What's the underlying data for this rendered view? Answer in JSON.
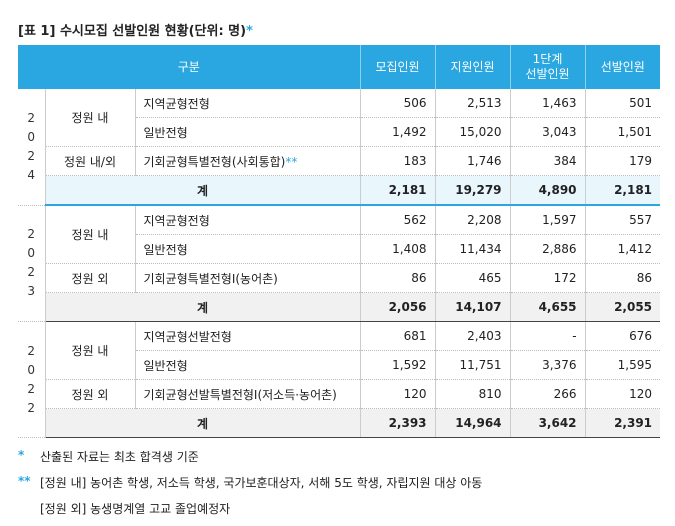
{
  "title": "[표 1] 수시모집 선발인원 현황(단위: 명)",
  "title_mark": "*",
  "header": {
    "category": "구분",
    "columns": [
      "모집인원",
      "지원인원",
      "1단계\n선발인원",
      "선발인원"
    ]
  },
  "blocks": [
    {
      "year": "2024",
      "groups": [
        {
          "label": "정원 내",
          "rows": [
            {
              "name": "지역균형전형",
              "values": [
                "506",
                "2,513",
                "1,463",
                "501"
              ]
            },
            {
              "name": "일반전형",
              "values": [
                "1,492",
                "15,020",
                "3,043",
                "1,501"
              ]
            }
          ]
        },
        {
          "label": "정원 내/외",
          "rows": [
            {
              "name": "기회균형특별전형(사회통합)",
              "mark": "**",
              "values": [
                "183",
                "1,746",
                "384",
                "179"
              ]
            }
          ]
        }
      ],
      "total": {
        "label": "계",
        "values": [
          "2,181",
          "19,279",
          "4,890",
          "2,181"
        ]
      }
    },
    {
      "year": "2023",
      "groups": [
        {
          "label": "정원 내",
          "rows": [
            {
              "name": "지역균형전형",
              "values": [
                "562",
                "2,208",
                "1,597",
                "557"
              ]
            },
            {
              "name": "일반전형",
              "values": [
                "1,408",
                "11,434",
                "2,886",
                "1,412"
              ]
            }
          ]
        },
        {
          "label": "정원 외",
          "rows": [
            {
              "name": "기회균형특별전형Ⅰ(농어촌)",
              "values": [
                "86",
                "465",
                "172",
                "86"
              ]
            }
          ]
        }
      ],
      "total": {
        "label": "계",
        "values": [
          "2,056",
          "14,107",
          "4,655",
          "2,055"
        ]
      }
    },
    {
      "year": "2022",
      "groups": [
        {
          "label": "정원 내",
          "rows": [
            {
              "name": "지역균형선발전형",
              "values": [
                "681",
                "2,403",
                "-",
                "676"
              ]
            },
            {
              "name": "일반전형",
              "values": [
                "1,592",
                "11,751",
                "3,376",
                "1,595"
              ]
            }
          ]
        },
        {
          "label": "정원 외",
          "rows": [
            {
              "name": "기회균형선발특별전형Ⅰ(저소득·농어촌)",
              "values": [
                "120",
                "810",
                "266",
                "120"
              ]
            }
          ]
        }
      ],
      "total": {
        "label": "계",
        "values": [
          "2,393",
          "14,964",
          "3,642",
          "2,391"
        ]
      }
    }
  ],
  "notes": [
    {
      "mark": "*",
      "lines": [
        "산출된 자료는 최초 합격생 기준"
      ]
    },
    {
      "mark": "**",
      "lines": [
        "[정원 내] 농어촌 학생, 저소득 학생, 국가보훈대상자, 서해 5도 학생, 자립지원 대상 아동",
        "[정원 외] 농생명계열 고교 졸업예정자"
      ]
    }
  ]
}
